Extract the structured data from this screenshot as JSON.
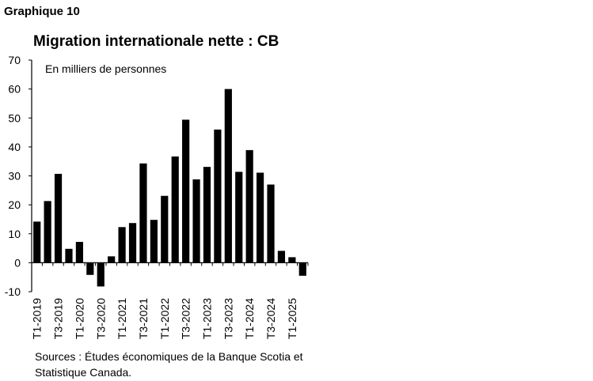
{
  "header": {
    "figure_label": "Graphique 10"
  },
  "chart_data": {
    "type": "bar",
    "title": "Migration internationale nette : CB",
    "unit_note": "En milliers de personnes",
    "categories": [
      "T1-2019",
      "T2-2019",
      "T3-2019",
      "T4-2019",
      "T1-2020",
      "T2-2020",
      "T3-2020",
      "T4-2020",
      "T1-2021",
      "T2-2021",
      "T3-2021",
      "T4-2021",
      "T1-2022",
      "T2-2022",
      "T3-2022",
      "T4-2022",
      "T1-2023",
      "T2-2023",
      "T3-2023",
      "T4-2023",
      "T1-2024",
      "T2-2024",
      "T3-2024",
      "T4-2024",
      "T1-2025",
      "T2-2025"
    ],
    "values": [
      14.2,
      21.3,
      30.7,
      4.8,
      7.2,
      -4.2,
      -8.2,
      2.2,
      12.3,
      13.7,
      34.3,
      14.8,
      23.1,
      36.7,
      49.4,
      28.8,
      33.1,
      46.0,
      60.0,
      31.4,
      38.9,
      31.1,
      27.0,
      4.1,
      1.9,
      -4.5
    ],
    "tick_labels": [
      "T1-2019",
      "T3-2019",
      "T1-2020",
      "T3-2020",
      "T1-2021",
      "T3-2021",
      "T1-2022",
      "T3-2022",
      "T1-2023",
      "T3-2023",
      "T1-2024",
      "T3-2024",
      "T1-2025"
    ],
    "y_ticks": [
      "70",
      "60",
      "50",
      "40",
      "30",
      "20",
      "10",
      "0",
      "-10"
    ],
    "ylim": [
      -10,
      70
    ],
    "bar_color": "#000000",
    "grid": false,
    "xlabel": "",
    "ylabel": ""
  },
  "footer": {
    "source": "Sources : Études économiques de la Banque Scotia et Statistique Canada."
  }
}
